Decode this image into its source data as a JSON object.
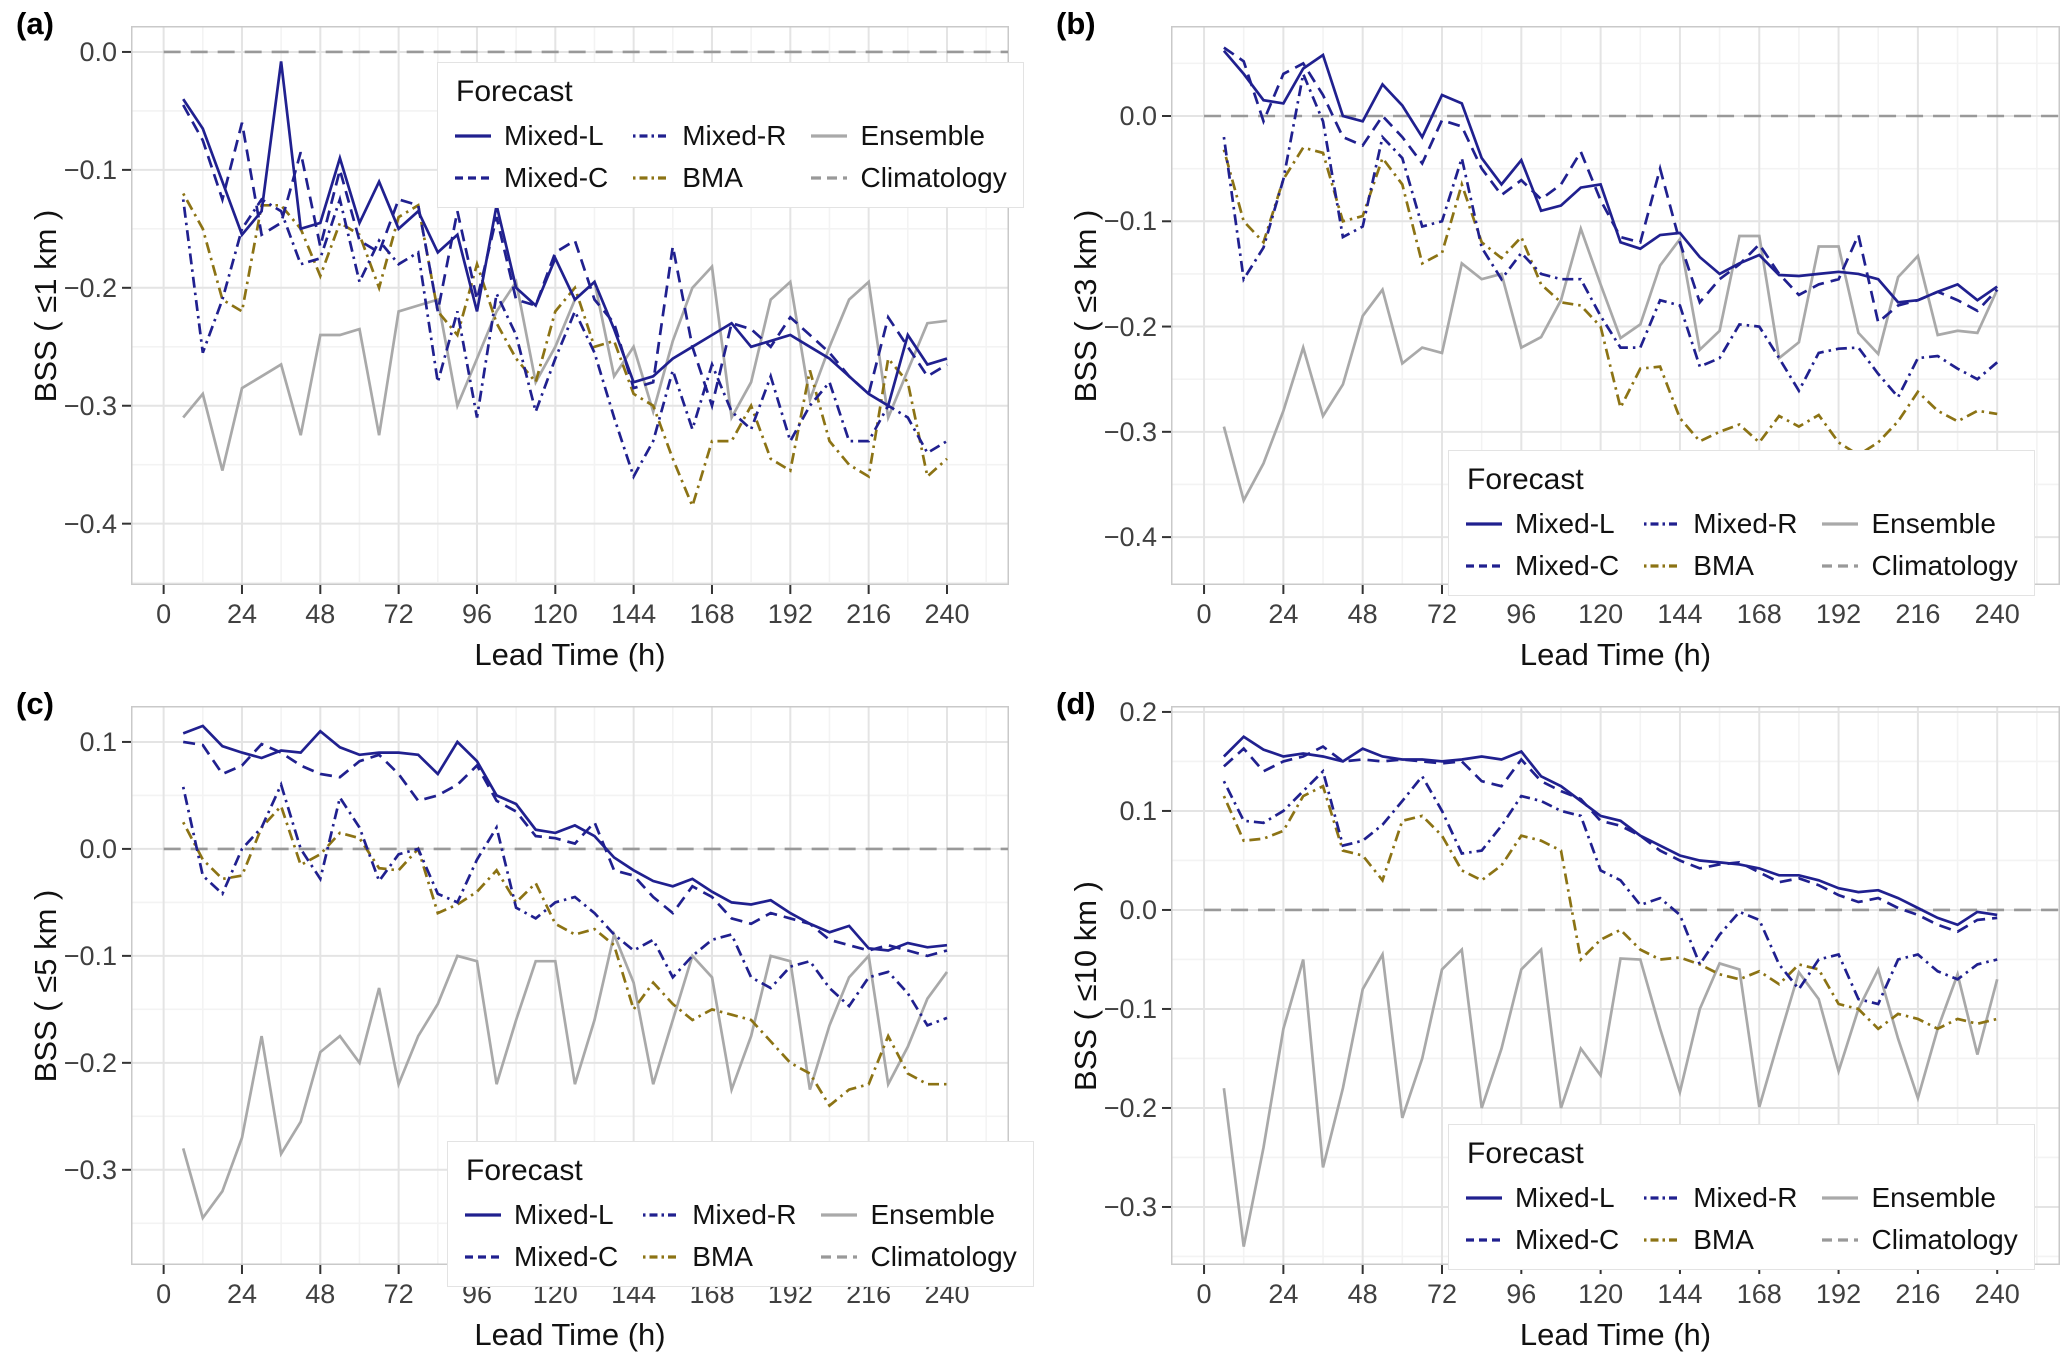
{
  "chart_data": {
    "type": "line",
    "layout": "2x2 panel grid, shared x axis style, legend inside each panel",
    "legend_title": "Forecast",
    "xlabel": "Lead Time (h)",
    "x_ticks": [
      0,
      24,
      48,
      72,
      96,
      120,
      144,
      168,
      192,
      216,
      240
    ],
    "xlim": [
      -10,
      259
    ],
    "grid": "major gray gridlines at 24 h and 0.1, minor at 12 h and 0.05, white panel, light gray border",
    "x": [
      6,
      12,
      18,
      24,
      30,
      36,
      42,
      48,
      54,
      60,
      66,
      72,
      78,
      84,
      90,
      96,
      102,
      108,
      114,
      120,
      126,
      132,
      138,
      144,
      150,
      156,
      162,
      168,
      174,
      180,
      186,
      192,
      198,
      204,
      210,
      216,
      222,
      228,
      234,
      240
    ],
    "series_meta": [
      {
        "key": "mixed_l",
        "label": "Mixed-L",
        "color": "#20208f",
        "style": "solid"
      },
      {
        "key": "mixed_c",
        "label": "Mixed-C",
        "color": "#20208f",
        "style": "dashed"
      },
      {
        "key": "mixed_r",
        "label": "Mixed-R",
        "color": "#20208f",
        "style": "dotdash"
      },
      {
        "key": "bma",
        "label": "BMA",
        "color": "#8c7314",
        "style": "dotdash"
      },
      {
        "key": "ensemble",
        "label": "Ensemble",
        "color": "#a9a9a9",
        "style": "solid"
      },
      {
        "key": "climatology",
        "label": "Climatology",
        "color": "#999999",
        "style": "longdash"
      }
    ],
    "panels": [
      {
        "id": "a",
        "tag": "(a)",
        "ylabel": "BSS ( ≤1 km )",
        "ylim": [
          -0.452,
          0.022
        ],
        "yticks": [
          0.0,
          -0.1,
          -0.2,
          -0.3,
          -0.4
        ],
        "legend_position": "inside top-right",
        "climatology": 0,
        "series": {
          "mixed_l": [
            -0.04,
            -0.065,
            -0.11,
            -0.155,
            -0.135,
            -0.008,
            -0.15,
            -0.145,
            -0.09,
            -0.145,
            -0.11,
            -0.15,
            -0.135,
            -0.17,
            -0.155,
            -0.22,
            -0.13,
            -0.2,
            -0.215,
            -0.175,
            -0.21,
            -0.195,
            -0.235,
            -0.28,
            -0.275,
            -0.26,
            -0.25,
            -0.24,
            -0.23,
            -0.25,
            -0.245,
            -0.24,
            -0.25,
            -0.26,
            -0.275,
            -0.29,
            -0.3,
            -0.24,
            -0.265,
            -0.26
          ],
          "mixed_c": [
            -0.045,
            -0.075,
            -0.125,
            -0.06,
            -0.155,
            -0.145,
            -0.085,
            -0.165,
            -0.1,
            -0.16,
            -0.17,
            -0.125,
            -0.13,
            -0.22,
            -0.135,
            -0.21,
            -0.14,
            -0.21,
            -0.215,
            -0.17,
            -0.16,
            -0.21,
            -0.23,
            -0.285,
            -0.28,
            -0.165,
            -0.25,
            -0.3,
            -0.23,
            -0.235,
            -0.25,
            -0.225,
            -0.24,
            -0.255,
            -0.275,
            -0.29,
            -0.225,
            -0.25,
            -0.275,
            -0.265
          ],
          "mixed_r": [
            -0.125,
            -0.255,
            -0.21,
            -0.15,
            -0.125,
            -0.135,
            -0.18,
            -0.175,
            -0.125,
            -0.195,
            -0.16,
            -0.18,
            -0.17,
            -0.28,
            -0.22,
            -0.31,
            -0.205,
            -0.24,
            -0.305,
            -0.26,
            -0.22,
            -0.255,
            -0.31,
            -0.36,
            -0.33,
            -0.27,
            -0.32,
            -0.265,
            -0.305,
            -0.32,
            -0.275,
            -0.33,
            -0.3,
            -0.28,
            -0.33,
            -0.33,
            -0.3,
            -0.31,
            -0.34,
            -0.33
          ],
          "bma": [
            -0.12,
            -0.15,
            -0.21,
            -0.22,
            -0.13,
            -0.13,
            -0.15,
            -0.19,
            -0.145,
            -0.155,
            -0.2,
            -0.14,
            -0.13,
            -0.22,
            -0.24,
            -0.18,
            -0.23,
            -0.26,
            -0.28,
            -0.22,
            -0.2,
            -0.25,
            -0.245,
            -0.29,
            -0.3,
            -0.345,
            -0.385,
            -0.33,
            -0.33,
            -0.3,
            -0.345,
            -0.355,
            -0.27,
            -0.33,
            -0.35,
            -0.36,
            -0.26,
            -0.28,
            -0.36,
            -0.345
          ],
          "ensemble": [
            -0.31,
            -0.29,
            -0.355,
            -0.285,
            -0.275,
            -0.265,
            -0.325,
            -0.24,
            -0.24,
            -0.235,
            -0.325,
            -0.22,
            -0.215,
            -0.21,
            -0.3,
            -0.26,
            -0.22,
            -0.195,
            -0.28,
            -0.25,
            -0.21,
            -0.195,
            -0.275,
            -0.25,
            -0.305,
            -0.245,
            -0.2,
            -0.182,
            -0.31,
            -0.28,
            -0.21,
            -0.195,
            -0.295,
            -0.25,
            -0.21,
            -0.195,
            -0.31,
            -0.27,
            -0.23,
            -0.228
          ]
        }
      },
      {
        "id": "b",
        "tag": "(b)",
        "ylabel": "BSS ( ≤3 km )",
        "ylim": [
          -0.4455,
          0.0855
        ],
        "yticks": [
          0.0,
          -0.1,
          -0.2,
          -0.3,
          -0.4
        ],
        "legend_position": "inside bottom-right",
        "climatology": 0,
        "series": {
          "mixed_l": [
            0.062,
            0.04,
            0.015,
            0.012,
            0.045,
            0.058,
            0.0,
            -0.005,
            0.03,
            0.01,
            -0.02,
            0.02,
            0.012,
            -0.04,
            -0.065,
            -0.042,
            -0.09,
            -0.085,
            -0.068,
            -0.065,
            -0.12,
            -0.126,
            -0.113,
            -0.111,
            -0.134,
            -0.15,
            -0.14,
            -0.132,
            -0.151,
            -0.152,
            -0.15,
            -0.148,
            -0.15,
            -0.155,
            -0.177,
            -0.175,
            -0.167,
            -0.16,
            -0.175,
            -0.162
          ],
          "mixed_c": [
            0.065,
            0.052,
            -0.005,
            0.04,
            0.05,
            0.02,
            -0.02,
            -0.028,
            0.0,
            -0.02,
            -0.045,
            -0.004,
            -0.01,
            -0.05,
            -0.075,
            -0.061,
            -0.079,
            -0.065,
            -0.034,
            -0.08,
            -0.115,
            -0.12,
            -0.05,
            -0.12,
            -0.177,
            -0.155,
            -0.141,
            -0.122,
            -0.15,
            -0.17,
            -0.16,
            -0.155,
            -0.113,
            -0.196,
            -0.18,
            -0.175,
            -0.167,
            -0.175,
            -0.185,
            -0.165
          ],
          "mixed_r": [
            -0.02,
            -0.155,
            -0.125,
            -0.06,
            0.04,
            -0.005,
            -0.115,
            -0.105,
            -0.02,
            -0.04,
            -0.105,
            -0.1,
            -0.04,
            -0.125,
            -0.155,
            -0.13,
            -0.15,
            -0.155,
            -0.155,
            -0.19,
            -0.22,
            -0.22,
            -0.175,
            -0.18,
            -0.238,
            -0.23,
            -0.198,
            -0.2,
            -0.23,
            -0.261,
            -0.225,
            -0.221,
            -0.22,
            -0.245,
            -0.267,
            -0.23,
            -0.228,
            -0.24,
            -0.25,
            -0.234
          ],
          "bma": [
            -0.032,
            -0.1,
            -0.12,
            -0.06,
            -0.03,
            -0.035,
            -0.1,
            -0.095,
            -0.04,
            -0.065,
            -0.14,
            -0.13,
            -0.065,
            -0.12,
            -0.135,
            -0.115,
            -0.16,
            -0.177,
            -0.18,
            -0.2,
            -0.277,
            -0.24,
            -0.238,
            -0.287,
            -0.309,
            -0.3,
            -0.293,
            -0.31,
            -0.285,
            -0.295,
            -0.284,
            -0.31,
            -0.322,
            -0.31,
            -0.29,
            -0.262,
            -0.28,
            -0.29,
            -0.28,
            -0.283
          ],
          "ensemble": [
            -0.295,
            -0.365,
            -0.33,
            -0.28,
            -0.22,
            -0.285,
            -0.255,
            -0.19,
            -0.165,
            -0.235,
            -0.22,
            -0.225,
            -0.14,
            -0.155,
            -0.15,
            -0.22,
            -0.21,
            -0.175,
            -0.107,
            -0.16,
            -0.211,
            -0.198,
            -0.142,
            -0.117,
            -0.222,
            -0.204,
            -0.114,
            -0.114,
            -0.23,
            -0.215,
            -0.124,
            -0.124,
            -0.206,
            -0.226,
            -0.153,
            -0.133,
            -0.208,
            -0.204,
            -0.206,
            -0.165
          ]
        }
      },
      {
        "id": "c",
        "tag": "(c)",
        "ylabel": "BSS ( ≤5 km )",
        "ylim": [
          -0.389,
          0.1336
        ],
        "yticks": [
          0.1,
          0.0,
          -0.1,
          -0.2,
          -0.3
        ],
        "legend_position": "inside bottom-right",
        "climatology": 0,
        "series": {
          "mixed_l": [
            0.108,
            0.115,
            0.096,
            0.09,
            0.085,
            0.092,
            0.09,
            0.11,
            0.095,
            0.088,
            0.09,
            0.09,
            0.088,
            0.07,
            0.1,
            0.082,
            0.05,
            0.042,
            0.018,
            0.015,
            0.022,
            0.012,
            -0.008,
            -0.02,
            -0.03,
            -0.035,
            -0.028,
            -0.04,
            -0.05,
            -0.052,
            -0.048,
            -0.06,
            -0.07,
            -0.078,
            -0.072,
            -0.093,
            -0.095,
            -0.088,
            -0.092,
            -0.09
          ],
          "mixed_c": [
            0.1,
            0.097,
            0.07,
            0.078,
            0.098,
            0.09,
            0.078,
            0.07,
            0.067,
            0.082,
            0.088,
            0.07,
            0.045,
            0.05,
            0.06,
            0.078,
            0.045,
            0.035,
            0.012,
            0.01,
            0.005,
            0.025,
            -0.02,
            -0.025,
            -0.045,
            -0.06,
            -0.035,
            -0.045,
            -0.065,
            -0.07,
            -0.06,
            -0.065,
            -0.07,
            -0.085,
            -0.09,
            -0.095,
            -0.09,
            -0.095,
            -0.1,
            -0.095
          ],
          "mixed_r": [
            0.058,
            -0.025,
            -0.042,
            0.0,
            0.02,
            0.06,
            0.0,
            -0.028,
            0.048,
            0.02,
            -0.03,
            -0.005,
            0.0,
            -0.042,
            -0.05,
            -0.01,
            0.02,
            -0.055,
            -0.065,
            -0.05,
            -0.045,
            -0.06,
            -0.08,
            -0.095,
            -0.085,
            -0.12,
            -0.1,
            -0.085,
            -0.08,
            -0.12,
            -0.13,
            -0.11,
            -0.105,
            -0.13,
            -0.147,
            -0.12,
            -0.115,
            -0.135,
            -0.165,
            -0.158
          ],
          "bma": [
            0.025,
            -0.01,
            -0.028,
            -0.025,
            0.02,
            0.04,
            -0.015,
            -0.005,
            0.015,
            0.01,
            -0.018,
            -0.02,
            0.0,
            -0.06,
            -0.052,
            -0.04,
            -0.02,
            -0.05,
            -0.032,
            -0.07,
            -0.08,
            -0.075,
            -0.09,
            -0.15,
            -0.125,
            -0.145,
            -0.16,
            -0.15,
            -0.155,
            -0.16,
            -0.18,
            -0.2,
            -0.21,
            -0.24,
            -0.225,
            -0.22,
            -0.175,
            -0.21,
            -0.22,
            -0.22
          ],
          "ensemble": [
            -0.28,
            -0.345,
            -0.32,
            -0.27,
            -0.175,
            -0.285,
            -0.255,
            -0.19,
            -0.175,
            -0.2,
            -0.13,
            -0.22,
            -0.175,
            -0.145,
            -0.1,
            -0.105,
            -0.22,
            -0.16,
            -0.105,
            -0.105,
            -0.22,
            -0.16,
            -0.08,
            -0.125,
            -0.22,
            -0.16,
            -0.1,
            -0.12,
            -0.225,
            -0.175,
            -0.1,
            -0.105,
            -0.225,
            -0.165,
            -0.12,
            -0.1,
            -0.22,
            -0.185,
            -0.14,
            -0.115
          ]
        }
      },
      {
        "id": "d",
        "tag": "(d)",
        "ylabel": "BSS ( ≤10 km )",
        "ylim": [
          -0.3586,
          0.206
        ],
        "yticks": [
          0.2,
          0.1,
          0.0,
          -0.1,
          -0.2,
          -0.3
        ],
        "legend_position": "inside bottom-right",
        "climatology": 0,
        "series": {
          "mixed_l": [
            0.155,
            0.175,
            0.162,
            0.155,
            0.158,
            0.155,
            0.15,
            0.163,
            0.155,
            0.152,
            0.152,
            0.15,
            0.152,
            0.155,
            0.152,
            0.16,
            0.135,
            0.125,
            0.11,
            0.095,
            0.09,
            0.075,
            0.065,
            0.055,
            0.05,
            0.048,
            0.046,
            0.042,
            0.035,
            0.035,
            0.03,
            0.022,
            0.018,
            0.02,
            0.012,
            0.002,
            -0.008,
            -0.015,
            -0.002,
            -0.005
          ],
          "mixed_c": [
            0.145,
            0.163,
            0.14,
            0.15,
            0.155,
            0.165,
            0.15,
            0.152,
            0.15,
            0.152,
            0.15,
            0.148,
            0.15,
            0.13,
            0.125,
            0.152,
            0.13,
            0.12,
            0.112,
            0.09,
            0.085,
            0.075,
            0.06,
            0.05,
            0.042,
            0.046,
            0.048,
            0.038,
            0.028,
            0.032,
            0.025,
            0.015,
            0.008,
            0.012,
            0.002,
            -0.005,
            -0.015,
            -0.022,
            -0.01,
            -0.008
          ],
          "mixed_r": [
            0.13,
            0.09,
            0.088,
            0.1,
            0.12,
            0.14,
            0.065,
            0.07,
            0.086,
            0.11,
            0.135,
            0.1,
            0.057,
            0.06,
            0.085,
            0.115,
            0.11,
            0.1,
            0.095,
            0.04,
            0.03,
            0.005,
            0.012,
            -0.005,
            -0.055,
            -0.025,
            -0.002,
            -0.01,
            -0.055,
            -0.08,
            -0.05,
            -0.045,
            -0.09,
            -0.095,
            -0.05,
            -0.045,
            -0.062,
            -0.07,
            -0.055,
            -0.05
          ],
          "bma": [
            0.115,
            0.07,
            0.072,
            0.08,
            0.115,
            0.125,
            0.06,
            0.055,
            0.03,
            0.09,
            0.095,
            0.075,
            0.04,
            0.03,
            0.045,
            0.075,
            0.07,
            0.06,
            -0.05,
            -0.03,
            -0.02,
            -0.04,
            -0.05,
            -0.048,
            -0.055,
            -0.065,
            -0.07,
            -0.062,
            -0.075,
            -0.055,
            -0.06,
            -0.095,
            -0.1,
            -0.12,
            -0.105,
            -0.11,
            -0.12,
            -0.11,
            -0.115,
            -0.11
          ],
          "ensemble": [
            -0.18,
            -0.34,
            -0.24,
            -0.12,
            -0.05,
            -0.26,
            -0.18,
            -0.08,
            -0.045,
            -0.21,
            -0.15,
            -0.06,
            -0.04,
            -0.2,
            -0.14,
            -0.06,
            -0.04,
            -0.2,
            -0.14,
            -0.167,
            -0.049,
            -0.05,
            -0.12,
            -0.184,
            -0.1,
            -0.054,
            -0.06,
            -0.199,
            -0.13,
            -0.063,
            -0.09,
            -0.163,
            -0.1,
            -0.06,
            -0.13,
            -0.19,
            -0.12,
            -0.065,
            -0.146,
            -0.07
          ]
        }
      }
    ],
    "style_colors": {
      "navy": "#20208f",
      "gold": "#8c7314",
      "ensemble_gray": "#a9a9a9",
      "climatology_gray": "#999999",
      "grid_major": "#e4e4e4",
      "grid_minor": "#f3f3f3",
      "panel_border": "#c9c9c9",
      "tick_text": "#404040",
      "title_text": "#111111"
    }
  }
}
